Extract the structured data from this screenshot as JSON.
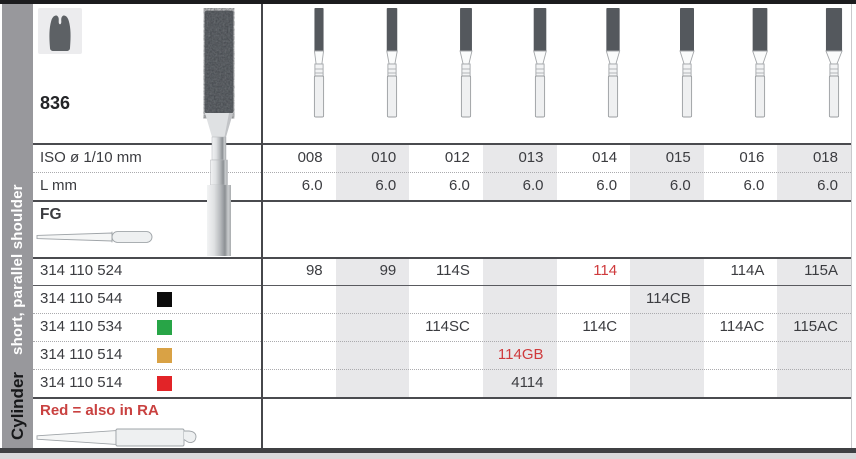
{
  "product": {
    "code": "836"
  },
  "sidebar": {
    "category": "Cylinder",
    "subtitle": "short, parallel shoulder"
  },
  "table": {
    "iso_label": "ISO ø 1/10 mm",
    "length_label": "L mm",
    "shank_label": "FG",
    "note": "Red = also in RA",
    "columns": [
      {
        "iso": "008",
        "length": "6.0",
        "shaded": false
      },
      {
        "iso": "010",
        "length": "6.0",
        "shaded": true
      },
      {
        "iso": "012",
        "length": "6.0",
        "shaded": false
      },
      {
        "iso": "013",
        "length": "6.0",
        "shaded": true
      },
      {
        "iso": "014",
        "length": "6.0",
        "shaded": false
      },
      {
        "iso": "015",
        "length": "6.0",
        "shaded": true
      },
      {
        "iso": "016",
        "length": "6.0",
        "shaded": false
      },
      {
        "iso": "018",
        "length": "6.0",
        "shaded": true
      }
    ],
    "rows": [
      {
        "order_no": "314 110 524",
        "grit_color": null,
        "cells": [
          {
            "text": "98"
          },
          {
            "text": "99"
          },
          {
            "text": "114S"
          },
          {
            "text": ""
          },
          {
            "text": "114",
            "red": true
          },
          {
            "text": ""
          },
          {
            "text": "114A"
          },
          {
            "text": "115A"
          }
        ]
      },
      {
        "order_no": "314 110 544",
        "grit_color": "#0b0b0b",
        "cells": [
          {
            "text": ""
          },
          {
            "text": ""
          },
          {
            "text": ""
          },
          {
            "text": ""
          },
          {
            "text": ""
          },
          {
            "text": "114CB"
          },
          {
            "text": ""
          },
          {
            "text": ""
          }
        ]
      },
      {
        "order_no": "314 110 534",
        "grit_color": "#28a547",
        "cells": [
          {
            "text": ""
          },
          {
            "text": ""
          },
          {
            "text": "114SC"
          },
          {
            "text": ""
          },
          {
            "text": "114C"
          },
          {
            "text": ""
          },
          {
            "text": "114AC"
          },
          {
            "text": "115AC"
          }
        ]
      },
      {
        "order_no": "314 110 514",
        "grit_color": "#d9a245",
        "cells": [
          {
            "text": ""
          },
          {
            "text": ""
          },
          {
            "text": ""
          },
          {
            "text": "114GB",
            "red": true
          },
          {
            "text": ""
          },
          {
            "text": ""
          },
          {
            "text": ""
          },
          {
            "text": ""
          }
        ]
      },
      {
        "order_no": "314 110 514",
        "grit_color": "#e22428",
        "cells": [
          {
            "text": ""
          },
          {
            "text": ""
          },
          {
            "text": ""
          },
          {
            "text": "4114"
          },
          {
            "text": ""
          },
          {
            "text": ""
          },
          {
            "text": ""
          },
          {
            "text": ""
          }
        ]
      }
    ]
  },
  "colors": {
    "accent_red": "#cf3a3c",
    "band_gray": "#e8e8ea",
    "sidebar_gray": "#98989c",
    "grit_black": "#0b0b0b",
    "grit_green": "#28a547",
    "grit_gold": "#d9a245",
    "grit_red": "#e22428"
  }
}
